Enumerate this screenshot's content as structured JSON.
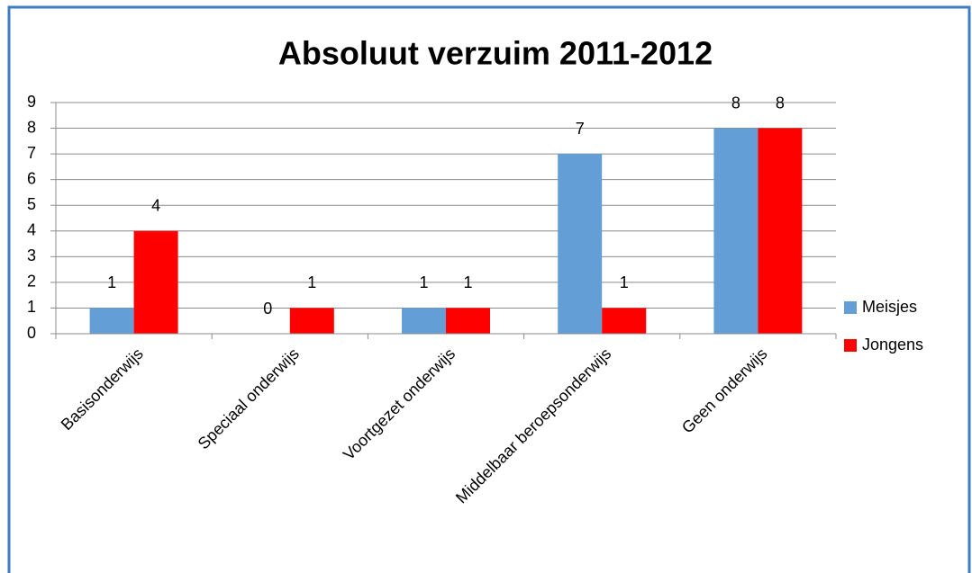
{
  "chart_data": {
    "type": "bar",
    "title": "Absoluut verzuim 2011-2012",
    "categories": [
      "Basisonderwijs",
      "Speciaal onderwijs",
      "Voortgezet onderwijs",
      "Middelbaar beroepsonderwijs",
      "Geen onderwijs"
    ],
    "series": [
      {
        "name": "Meisjes",
        "color": "#639fd6",
        "values": [
          1,
          0,
          1,
          7,
          8
        ]
      },
      {
        "name": "Jongens",
        "color": "#ff0000",
        "values": [
          4,
          1,
          1,
          1,
          8
        ]
      }
    ],
    "ylim": [
      0,
      9
    ],
    "yticks": [
      0,
      1,
      2,
      3,
      4,
      5,
      6,
      7,
      8,
      9
    ],
    "grid": true,
    "legend": "right"
  }
}
